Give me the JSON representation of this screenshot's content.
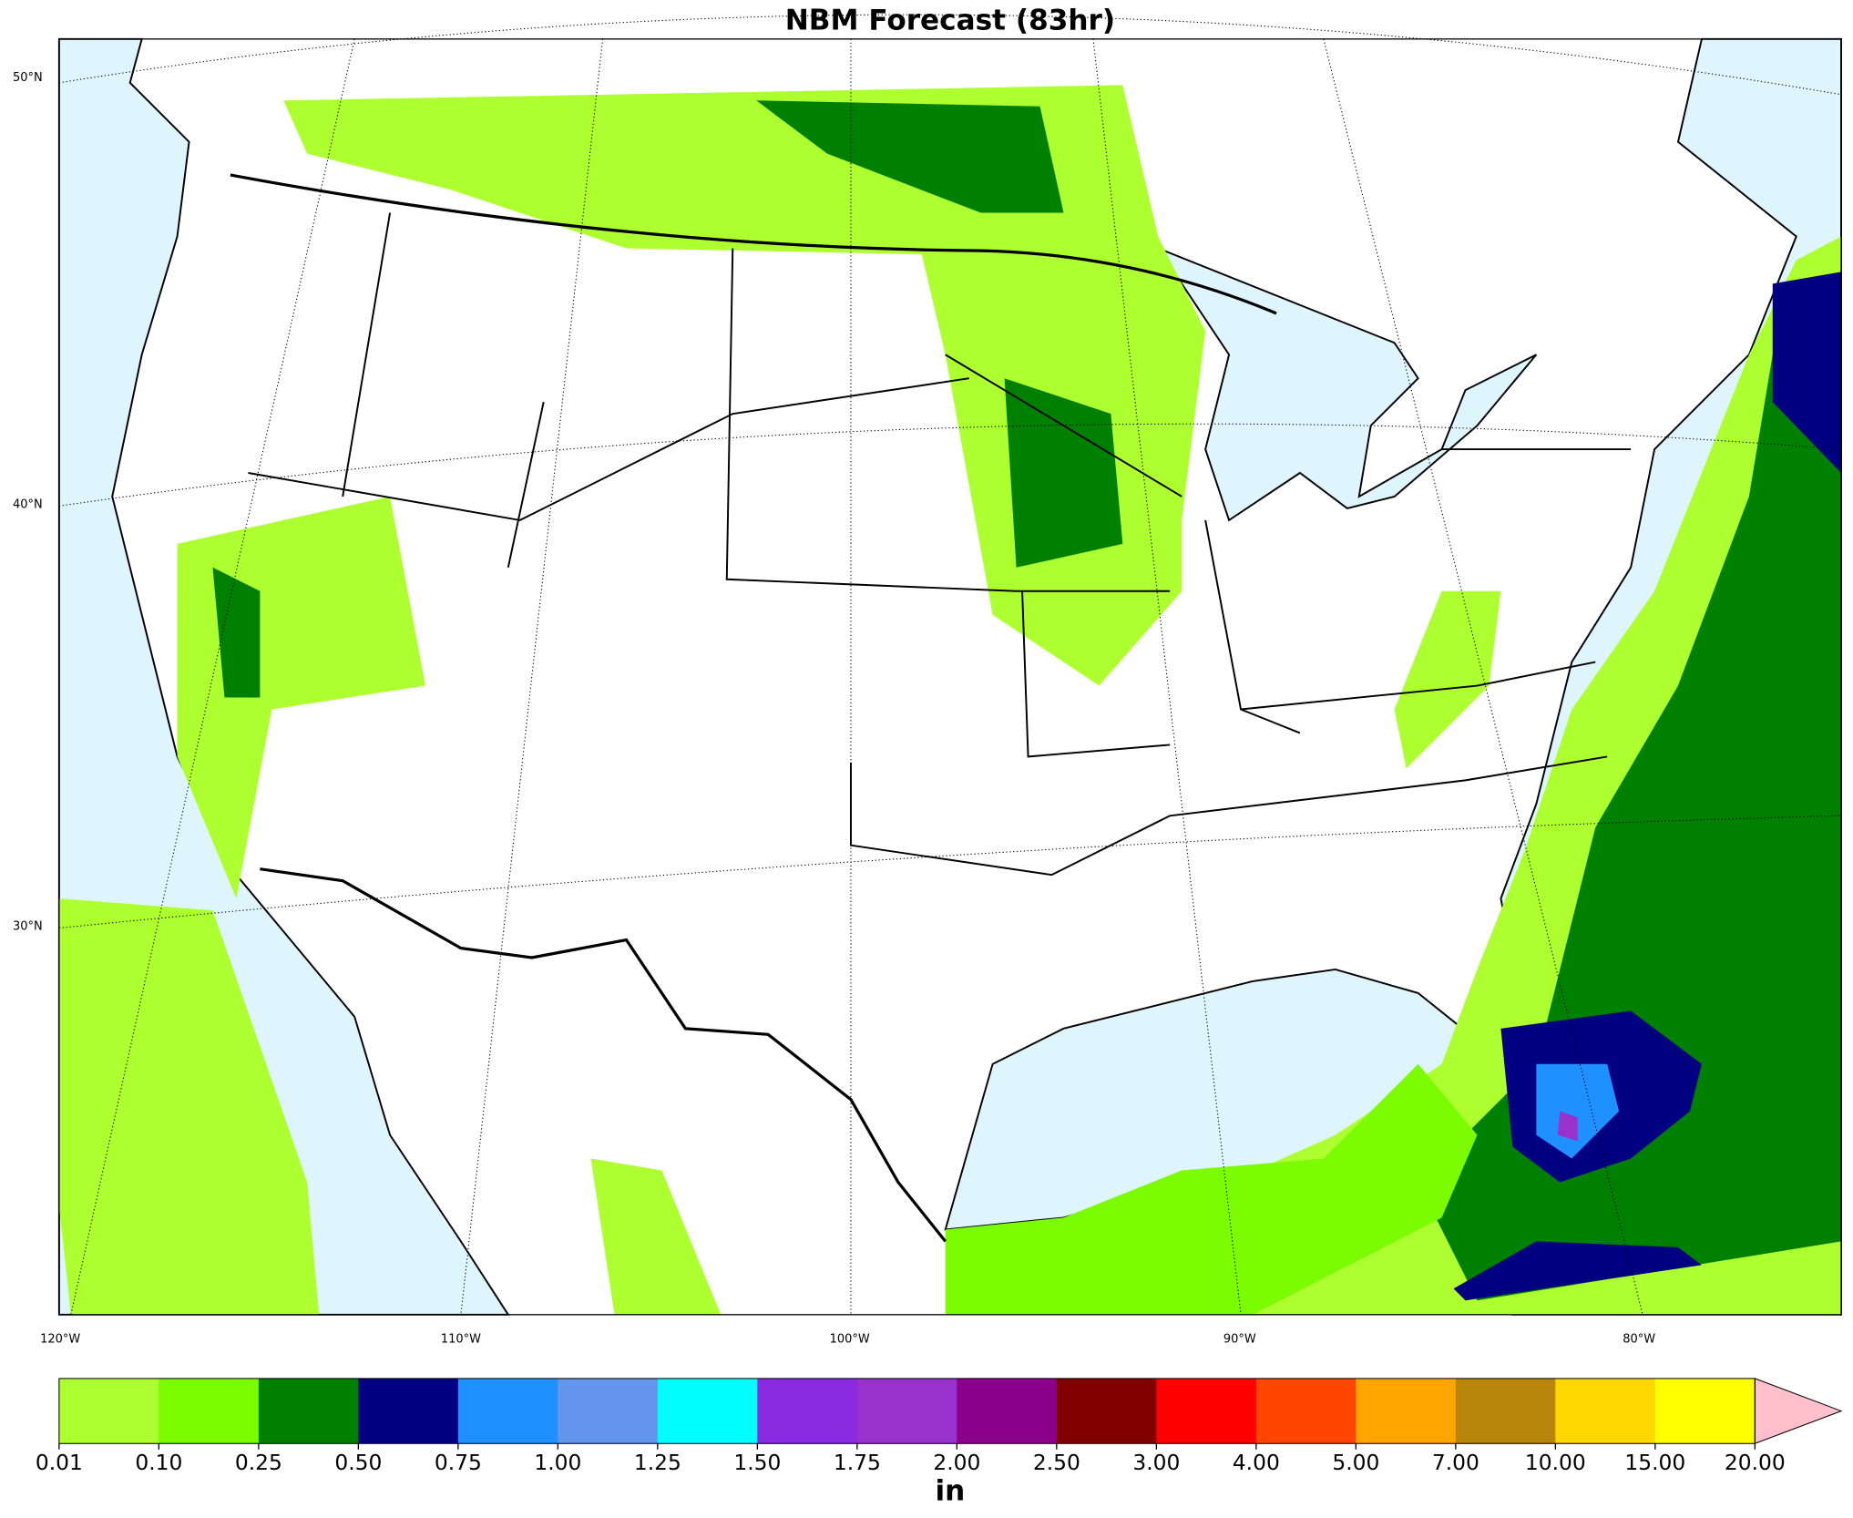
{
  "title": "NBM Forecast (83hr)",
  "map": {
    "lat_labels": [
      "50°N",
      "40°N",
      "30°N"
    ],
    "lon_labels": [
      "120°W",
      "110°W",
      "100°W",
      "90°W",
      "80°W"
    ]
  },
  "colorbar": {
    "label": "in",
    "levels": [
      0.01,
      {
        "value": 0.1,
        "label": "0.10"
      },
      {
        "value": 0.25,
        "label": "0.25"
      },
      {
        "value": 0.5,
        "label": "0.50"
      },
      {
        "value": 0.75,
        "label": "0.75"
      },
      {
        "value": 1,
        "label": "1.00"
      },
      {
        "value": 1.25,
        "label": "1.25"
      },
      {
        "value": 1.5,
        "label": "1.50"
      },
      {
        "value": 1.75,
        "label": "1.75"
      },
      {
        "value": 2,
        "label": "2.00"
      },
      {
        "value": 2.5,
        "label": "2.50"
      },
      {
        "value": 3,
        "label": "3.00"
      },
      {
        "value": 4,
        "label": "4.00"
      },
      {
        "value": 5,
        "label": "5.00"
      },
      {
        "value": 7,
        "label": "7.00"
      },
      {
        "value": 10,
        "label": "10.00"
      },
      {
        "value": 15,
        "label": "15.00"
      },
      {
        "value": 20,
        "label": "20.00"
      }
    ],
    "colors": [
      "#adff2f",
      "#7cfc00",
      "#008000",
      "#000080",
      "#1e90ff",
      "#6495ed",
      "#00ffff",
      "#8a2be2",
      "#9932cc",
      "#8b008b",
      "#800000",
      "#ff0000",
      "#ff4500",
      "#ffa500",
      "#b8860b",
      "#ffd700",
      "#ffff00"
    ],
    "extend_color": "#ffc0cb"
  }
}
